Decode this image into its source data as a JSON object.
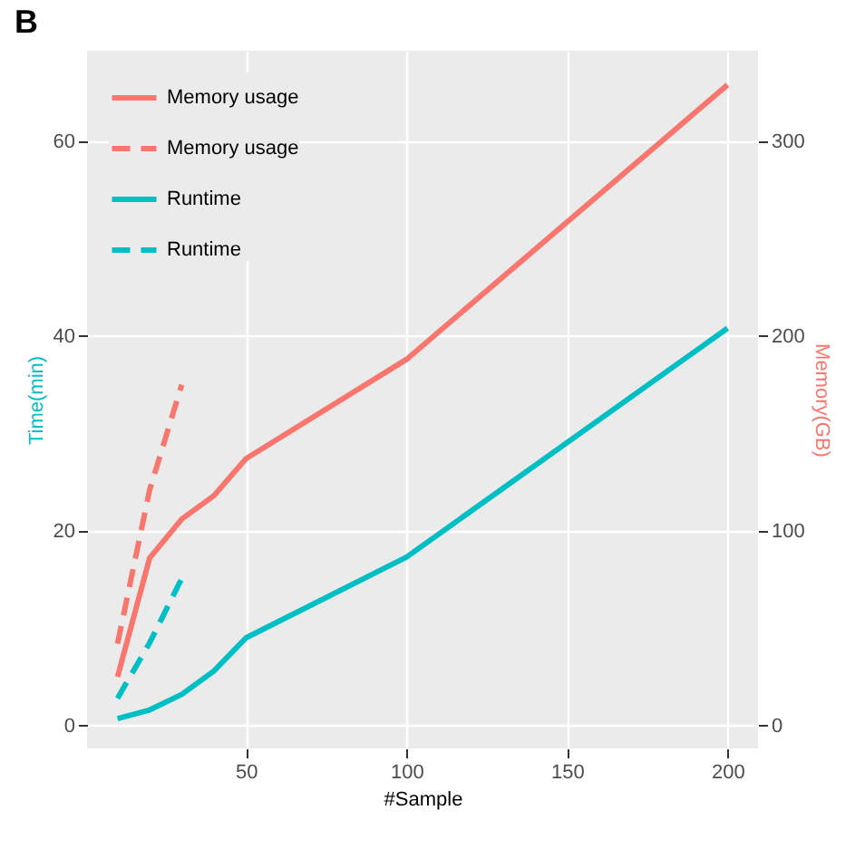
{
  "chart_data": {
    "type": "line",
    "title": "B",
    "xlabel": "#Sample",
    "ylabel": "Time(min)",
    "y2label": "Memory(GB)",
    "xlim": [
      0.5,
      209.5
    ],
    "xticks": [
      50,
      100,
      150,
      200
    ],
    "ylim": [
      -2.35,
      69.3
    ],
    "yticks": [
      0,
      20,
      40,
      60
    ],
    "y2lim": [
      -11.75,
      346.5
    ],
    "y2ticks": [
      0,
      100,
      200,
      300
    ],
    "grid": true,
    "legend": "top left",
    "series": [
      {
        "name": "Memory usage",
        "color": "#f8766d",
        "axis": "y2",
        "line_style": "solid",
        "x": [
          10,
          20,
          30,
          40,
          50,
          100,
          200
        ],
        "values": [
          25,
          86,
          106,
          118,
          137,
          188,
          329
        ]
      },
      {
        "name": "Memory usage",
        "color": "#f8766d",
        "axis": "y2",
        "line_style": "dashed",
        "x": [
          10,
          20,
          30
        ],
        "values": [
          42,
          121,
          175
        ]
      },
      {
        "name": "Runtime",
        "color": "#00bfc4",
        "line_style": "solid",
        "x": [
          10,
          20,
          30,
          40,
          50,
          100,
          200
        ],
        "values": [
          0.7,
          1.6,
          3.2,
          5.6,
          9.0,
          17.3,
          40.8
        ]
      },
      {
        "name": "Runtime",
        "color": "#00bfc4",
        "line_style": "dashed",
        "x": [
          10,
          20,
          30
        ],
        "values": [
          2.8,
          8.5,
          15.1
        ]
      }
    ]
  }
}
